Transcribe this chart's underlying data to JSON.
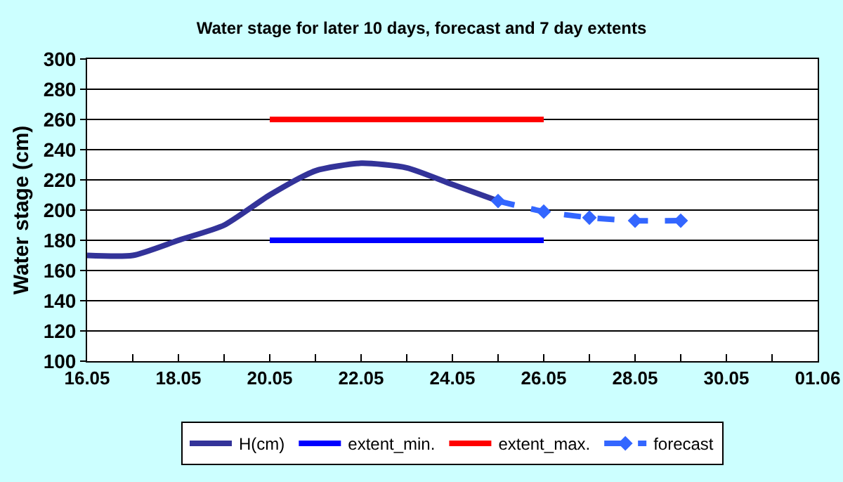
{
  "chart_data": {
    "type": "line",
    "title": "Water stage for later 10 days, forecast and 7 day extents",
    "ylabel": "Water stage (cm)",
    "series": [
      {
        "name": "H(cm)",
        "color": "#333399",
        "x": [
          "--05-16",
          "--05-17",
          "--05-18",
          "--05-19",
          "--05-20",
          "--05-21",
          "--05-22",
          "--05-23",
          "--05-24",
          "--05-25"
        ],
        "values": [
          170,
          170,
          180,
          190,
          210,
          226,
          231,
          228,
          217,
          206
        ],
        "line_style": "solid",
        "marker": "none"
      },
      {
        "name": "extent_min.",
        "color": "#0000ff",
        "x": [
          "--05-20",
          "--05-26"
        ],
        "values": [
          180,
          180
        ],
        "line_style": "solid",
        "marker": "none"
      },
      {
        "name": "extent_max.",
        "color": "#ff0000",
        "x": [
          "--05-20",
          "--05-26"
        ],
        "values": [
          260,
          260
        ],
        "line_style": "solid",
        "marker": "none"
      },
      {
        "name": "forecast",
        "color": "#3366ff",
        "x": [
          "--05-25",
          "--05-26",
          "--05-27",
          "--05-28",
          "--05-29"
        ],
        "values": [
          206,
          199,
          195,
          193,
          193
        ],
        "line_style": "dashed",
        "marker": "diamond"
      }
    ],
    "xlim": [
      "--05-16",
      "--06-01"
    ],
    "xticks": [
      {
        "value": "--05-16",
        "label": "16.05"
      },
      {
        "value": "--05-17",
        "label": null
      },
      {
        "value": "--05-18",
        "label": "18.05"
      },
      {
        "value": "--05-19",
        "label": null
      },
      {
        "value": "--05-20",
        "label": "20.05"
      },
      {
        "value": "--05-21",
        "label": null
      },
      {
        "value": "--05-22",
        "label": "22.05"
      },
      {
        "value": "--05-23",
        "label": null
      },
      {
        "value": "--05-24",
        "label": "24.05"
      },
      {
        "value": "--05-25",
        "label": null
      },
      {
        "value": "--05-26",
        "label": "26.05"
      },
      {
        "value": "--05-27",
        "label": null
      },
      {
        "value": "--05-28",
        "label": "28.05"
      },
      {
        "value": "--05-29",
        "label": null
      },
      {
        "value": "--05-30",
        "label": "30.05"
      },
      {
        "value": "--05-31",
        "label": null
      },
      {
        "value": "--06-01",
        "label": "01.06"
      }
    ],
    "ylim": [
      100,
      300
    ],
    "yticks": [
      100,
      120,
      140,
      160,
      180,
      200,
      220,
      240,
      260,
      280,
      300
    ],
    "grid": "y",
    "legend": "bottom"
  }
}
